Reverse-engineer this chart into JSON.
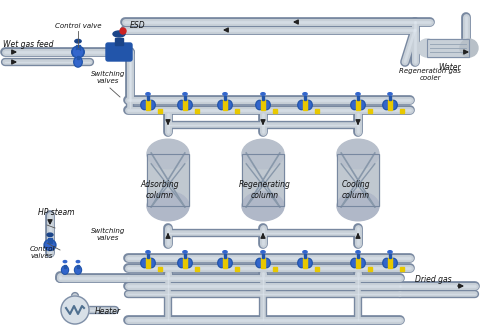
{
  "bg_color": "#ffffff",
  "pipe_light": "#c8d0d8",
  "pipe_mid": "#9aa8b8",
  "pipe_dark": "#7888a0",
  "valve_blue": "#2255aa",
  "valve_blue2": "#3366cc",
  "valve_yellow": "#e8c800",
  "text_color": "#111111",
  "arrow_color": "#222222",
  "labels": {
    "control_valve": "Control valve",
    "esd": "ESD",
    "wet_gas_feed": "Wet gas feed",
    "switching_valves_top": "Switching\nvalves",
    "adsorbing": "Adsorbing\ncolumn",
    "regenerating": "Regenerating\ncolumn",
    "cooling": "Cooling\ncolumn",
    "hp_steam": "HP steam",
    "switching_valves_bot": "Switching\nvalves",
    "control_valves": "Control\nvalves",
    "heater": "Heater",
    "dried_gas": "Dried gas",
    "water": "Water",
    "regen_cooler": "Regeneration gas\ncooler"
  }
}
